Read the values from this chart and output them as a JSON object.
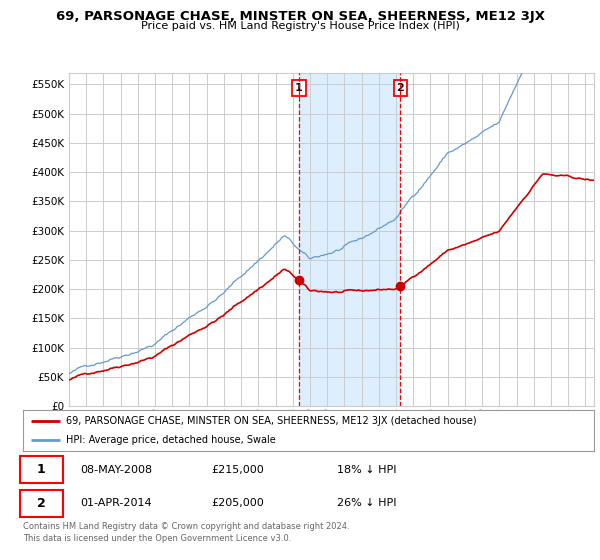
{
  "title": "69, PARSONAGE CHASE, MINSTER ON SEA, SHEERNESS, ME12 3JX",
  "subtitle": "Price paid vs. HM Land Registry's House Price Index (HPI)",
  "ylabel_vals": [
    0,
    50000,
    100000,
    150000,
    200000,
    250000,
    300000,
    350000,
    400000,
    450000,
    500000,
    550000
  ],
  "ylim": [
    0,
    570000
  ],
  "xlim_start": 1995.0,
  "xlim_end": 2025.5,
  "marker1_x": 2008.36,
  "marker1_y": 215000,
  "marker2_x": 2014.25,
  "marker2_y": 205000,
  "marker1_date": "08-MAY-2008",
  "marker1_price": "£215,000",
  "marker1_hpi": "18% ↓ HPI",
  "marker2_date": "01-APR-2014",
  "marker2_price": "£205,000",
  "marker2_hpi": "26% ↓ HPI",
  "legend_property": "69, PARSONAGE CHASE, MINSTER ON SEA, SHEERNESS, ME12 3JX (detached house)",
  "legend_hpi": "HPI: Average price, detached house, Swale",
  "footer": "Contains HM Land Registry data © Crown copyright and database right 2024.\nThis data is licensed under the Open Government Licence v3.0.",
  "line_color_red": "#cc0000",
  "line_color_blue": "#6699cc",
  "shade_color": "#ddeeff",
  "background_color": "#ffffff",
  "grid_color": "#cccccc"
}
